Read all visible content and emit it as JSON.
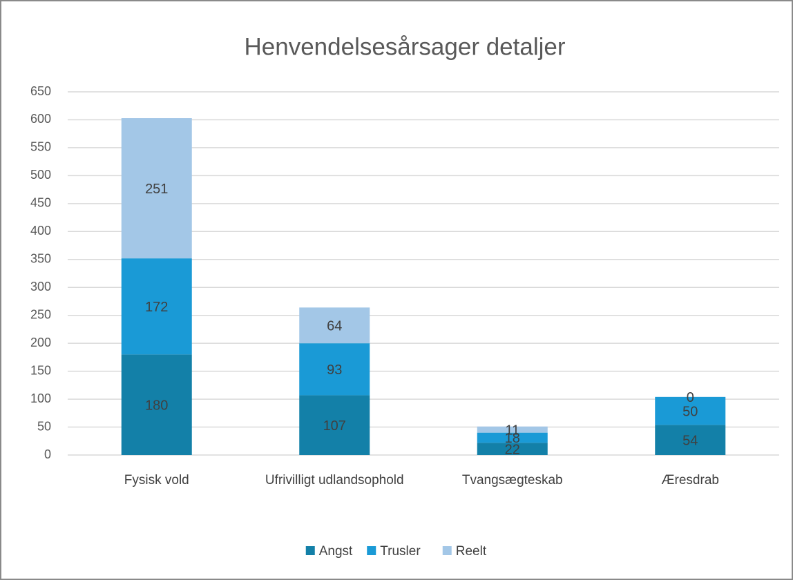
{
  "chart_data": {
    "type": "stacked_bar",
    "title": "Henvendelsesårsager detaljer",
    "categories": [
      "Fysisk vold",
      "Ufrivilligt udlandsophold",
      "Tvangsægteskab",
      "Æresdrab"
    ],
    "series": [
      {
        "name": "Angst",
        "color": "#1380a8",
        "values": [
          180,
          107,
          22,
          54
        ]
      },
      {
        "name": "Trusler",
        "color": "#1a9ad6",
        "values": [
          172,
          93,
          18,
          50
        ]
      },
      {
        "name": "Reelt",
        "color": "#a3c7e7",
        "values": [
          251,
          64,
          11,
          0
        ]
      }
    ],
    "ylim": [
      0,
      650
    ],
    "yticks": [
      0,
      50,
      100,
      150,
      200,
      250,
      300,
      350,
      400,
      450,
      500,
      550,
      600,
      650
    ],
    "grid": true,
    "legend": "bottom"
  }
}
